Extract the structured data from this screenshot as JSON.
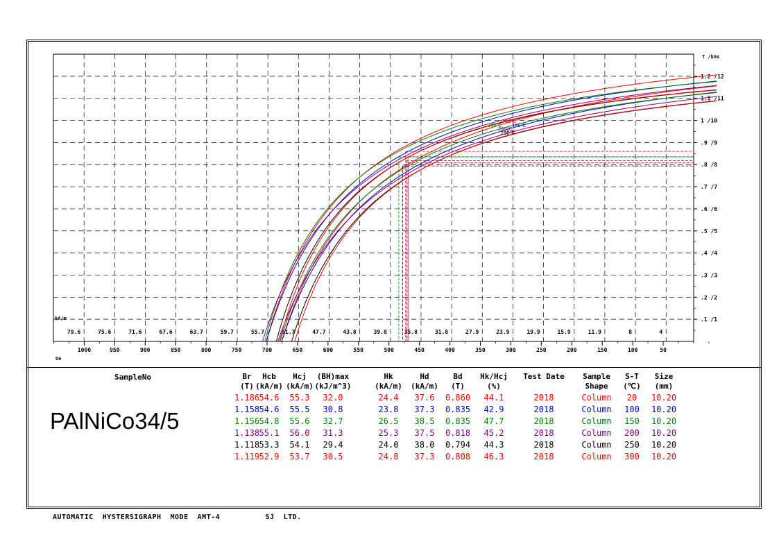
{
  "footer": {
    "mode": "AUTOMATIC  HYSTERSIGRAPH  MODE  AMT-4",
    "company": "SJ  LTD."
  },
  "sample": {
    "label": "SampleNo",
    "name": "PAlNiCo34/5"
  },
  "table": {
    "headers": [
      {
        "l1": "Br",
        "l2": "(T)"
      },
      {
        "l1": "Hcb",
        "l2": "(kA/m)"
      },
      {
        "l1": "Hcj",
        "l2": "(kA/m)"
      },
      {
        "l1": "(BH)max",
        "l2": "(kJ/m^3)"
      },
      {
        "l1": "Hk",
        "l2": "(kA/m)"
      },
      {
        "l1": "Hd",
        "l2": "(kA/m)"
      },
      {
        "l1": "Bd",
        "l2": "(T)"
      },
      {
        "l1": "Hk/Hcj",
        "l2": "(%)"
      },
      {
        "l1": "Test Date",
        "l2": ""
      },
      {
        "l1": "Sample",
        "l2": "Shape"
      },
      {
        "l1": "S-T",
        "l2": "(℃)"
      },
      {
        "l1": "Size",
        "l2": "(mm)"
      }
    ],
    "rows": [
      {
        "color": "#ff0000",
        "cells": [
          "1.186",
          "54.6",
          "55.3",
          "32.0",
          "24.4",
          "37.6",
          "0.860",
          "44.1",
          "2018",
          "Column",
          "20",
          "10.20"
        ]
      },
      {
        "color": "#0000cc",
        "cells": [
          "1.158",
          "54.6",
          "55.5",
          "30.8",
          "23.8",
          "37.3",
          "0.835",
          "42.9",
          "2018",
          "Column",
          "100",
          "10.20"
        ]
      },
      {
        "color": "#008000",
        "cells": [
          "1.156",
          "54.8",
          "55.6",
          "32.7",
          "26.5",
          "38.5",
          "0.835",
          "47.7",
          "2018",
          "Column",
          "150",
          "10.20"
        ]
      },
      {
        "color": "#800080",
        "cells": [
          "1.138",
          "55.1",
          "56.0",
          "31.3",
          "25.3",
          "37.5",
          "0.818",
          "45.2",
          "2018",
          "Column",
          "200",
          "10.20"
        ]
      },
      {
        "color": "#000000",
        "cells": [
          "1.118",
          "53.3",
          "54.1",
          "29.4",
          "24.0",
          "38.0",
          "0.794",
          "44.3",
          "2018",
          "Column",
          "250",
          "10.20"
        ]
      },
      {
        "color": "#ff0000",
        "cells": [
          "1.119",
          "52.9",
          "53.7",
          "30.5",
          "24.8",
          "37.3",
          "0.808",
          "46.3",
          "2018",
          "Column",
          "300",
          "10.20"
        ]
      }
    ]
  },
  "chart_data": {
    "type": "line",
    "ylabel": "T /kGs",
    "x_top_label": "kA/m",
    "x_bottom_label": "Oe",
    "x_kam_ticks": [
      "79.6",
      "75.6",
      "71.6",
      "67.6",
      "63.7",
      "59.7",
      "55.7",
      "51.7",
      "47.7",
      "43.8",
      "39.8",
      "35.8",
      "31.8",
      "27.9",
      "23.9",
      "19.9",
      "15.9",
      "11.9",
      "8",
      "4"
    ],
    "x_oe_ticks": [
      "1000",
      "950",
      "900",
      "850",
      "800",
      "750",
      "700",
      "650",
      "600",
      "550",
      "500",
      "450",
      "400",
      "350",
      "300",
      "250",
      "200",
      "150",
      "100",
      "50"
    ],
    "y_ticks": [
      ".1 /1",
      ".2 /2",
      ".3 /3",
      ".4 /4",
      ".5 /5",
      ".6 /6",
      ".7 /7",
      ".8 /8",
      ".9 /9",
      "1 /10",
      "1.1 /11",
      "1.2 /12"
    ],
    "xlim_kam": [
      83.6,
      0
    ],
    "ylim_T": [
      0,
      1.3
    ],
    "curve_labels": [
      "150℃",
      "20℃",
      "100℃",
      "200℃",
      "250℃",
      "300℃"
    ],
    "series": [
      {
        "name": "20℃",
        "color": "#ff0000",
        "Br": 1.186,
        "Hcb": 54.6,
        "Bd": 0.86,
        "Hd": 37.6
      },
      {
        "name": "100℃",
        "color": "#0000cc",
        "Br": 1.158,
        "Hcb": 54.6,
        "Bd": 0.835,
        "Hd": 37.3
      },
      {
        "name": "150℃",
        "color": "#008000",
        "Br": 1.156,
        "Hcb": 54.8,
        "Bd": 0.835,
        "Hd": 38.5
      },
      {
        "name": "200℃",
        "color": "#800080",
        "Br": 1.138,
        "Hcb": 55.1,
        "Bd": 0.818,
        "Hd": 37.5
      },
      {
        "name": "250℃",
        "color": "#000000",
        "Br": 1.118,
        "Hcb": 53.3,
        "Bd": 0.794,
        "Hd": 38.0
      },
      {
        "name": "300℃",
        "color": "#ff0000",
        "Br": 1.119,
        "Hcb": 52.9,
        "Bd": 0.808,
        "Hd": 37.3
      }
    ]
  }
}
